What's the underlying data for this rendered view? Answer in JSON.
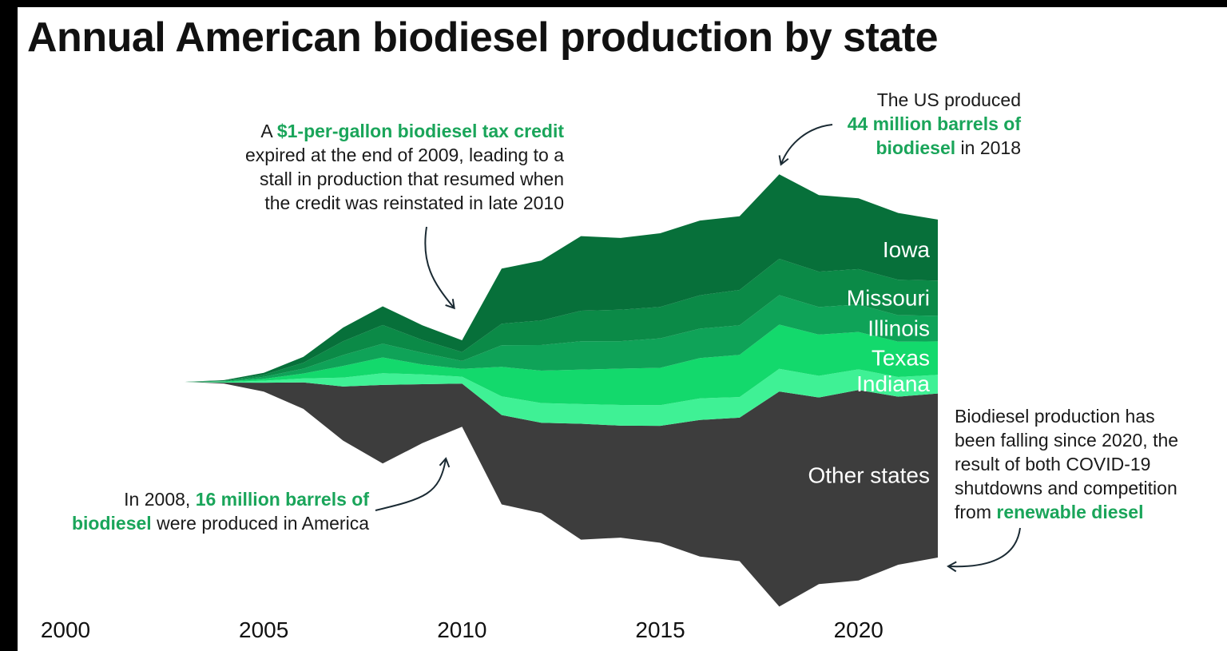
{
  "title": "Annual American biodiesel production by state",
  "annotations": {
    "tax_credit": {
      "pre": "A ",
      "highlight": "$1-per-gallon biodiesel tax credit",
      "line2": "expired at the end of 2009, leading to a",
      "line3": "stall in production that resumed when",
      "line4": "the credit was reinstated in late 2010"
    },
    "peak_2018": {
      "line1": "The US produced",
      "highlight1": "44 million barrels of",
      "highlight2": "biodiesel",
      "post": " in 2018"
    },
    "year_2008": {
      "pre": "In 2008, ",
      "highlight1": "16 million barrels of",
      "highlight2": "biodiesel",
      "post": " were produced in America"
    },
    "falling": {
      "line1": "Biodiesel production has",
      "line2": "been falling since 2020, the",
      "line3": "result of both COVID-19",
      "line4": "shutdowns and competition",
      "pre5": "from ",
      "highlight": "renewable diesel"
    }
  },
  "colors": {
    "highlight": "#1aa55a",
    "Iowa": "#07703a",
    "Missouri": "#0b8a47",
    "Illinois": "#0fa358",
    "Texas": "#13d96c",
    "Indiana": "#3ff195",
    "Other states": "#3d3d3d"
  },
  "chart_data": {
    "type": "area",
    "layout": "streamgraph",
    "units": "million barrels",
    "title": "Annual American biodiesel production by state",
    "x": [
      2000,
      2001,
      2002,
      2003,
      2004,
      2005,
      2006,
      2007,
      2008,
      2009,
      2010,
      2011,
      2012,
      2013,
      2014,
      2015,
      2016,
      2017,
      2018,
      2019,
      2020,
      2021,
      2022
    ],
    "xticks": [
      2000,
      2005,
      2010,
      2015,
      2020
    ],
    "series": [
      {
        "name": "Iowa",
        "values": [
          0,
          0,
          0,
          0,
          0.05,
          0.2,
          0.6,
          1.4,
          1.9,
          1.5,
          1.2,
          5.6,
          6.1,
          7.6,
          7.3,
          7.5,
          7.6,
          7.5,
          8.6,
          7.8,
          7.2,
          6.8,
          6.2
        ]
      },
      {
        "name": "Missouri",
        "values": [
          0,
          0,
          0,
          0,
          0.05,
          0.2,
          0.6,
          1.4,
          1.9,
          1.3,
          0.9,
          2.2,
          2.5,
          3.1,
          3.2,
          3.2,
          3.4,
          3.6,
          3.7,
          3.6,
          3.6,
          3.6,
          3.6
        ]
      },
      {
        "name": "Illinois",
        "values": [
          0,
          0,
          0,
          0,
          0.05,
          0.2,
          0.5,
          1.1,
          1.4,
          1.2,
          0.8,
          2.2,
          2.6,
          2.9,
          2.8,
          3.0,
          3.0,
          3.0,
          3.0,
          2.8,
          2.8,
          2.7,
          2.6
        ]
      },
      {
        "name": "Texas",
        "values": [
          0,
          0,
          0,
          0,
          0.05,
          0.2,
          0.5,
          1.2,
          1.6,
          1.0,
          0.8,
          3.0,
          3.3,
          3.5,
          3.7,
          3.8,
          4.1,
          4.3,
          4.5,
          4.2,
          3.8,
          3.6,
          3.4
        ]
      },
      {
        "name": "Indiana",
        "values": [
          0,
          0,
          0,
          0,
          0.05,
          0.2,
          0.4,
          0.9,
          1.2,
          1.0,
          0.7,
          1.9,
          2.0,
          2.0,
          2.1,
          2.1,
          2.2,
          2.1,
          2.3,
          2.2,
          2.1,
          2.0,
          1.9
        ]
      },
      {
        "name": "Other states",
        "values": [
          0,
          0,
          0,
          0,
          0.1,
          0.9,
          2.7,
          5.5,
          8.0,
          6.0,
          4.4,
          9.1,
          9.2,
          11.8,
          11.4,
          11.9,
          13.9,
          14.6,
          21.9,
          19.0,
          19.4,
          17.1,
          16.7
        ]
      }
    ],
    "label_positions": {
      "Iowa": "inside-right",
      "Missouri": "inside-right",
      "Illinois": "inside-right",
      "Texas": "inside-right",
      "Indiana": "inside-right",
      "Other states": "inside-right"
    },
    "grid": false,
    "legend": "none"
  }
}
